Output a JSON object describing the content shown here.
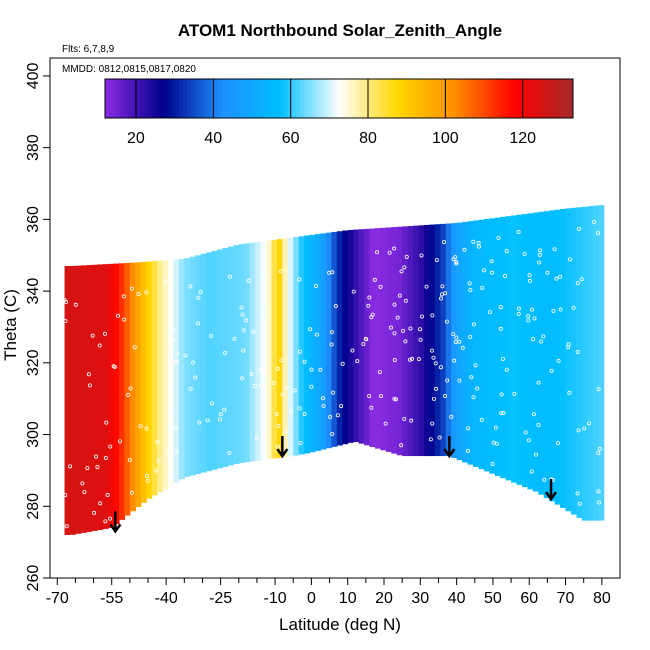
{
  "chart_data": {
    "type": "heatmap",
    "title": "ATOM1 Northbound Solar_Zenith_Angle",
    "subtitle_flights": "Flts: 6,7,8,9",
    "subtitle_dates": "MMDD: 0812,0815,0817,0820",
    "xlabel": "Latitude (deg N)",
    "ylabel": "Theta (C)",
    "xlim": [
      -72,
      85
    ],
    "ylim": [
      260,
      405
    ],
    "x_ticks": [
      -70,
      -55,
      -40,
      -25,
      -10,
      0,
      10,
      20,
      30,
      40,
      50,
      60,
      70,
      80
    ],
    "y_ticks": [
      260,
      280,
      300,
      320,
      340,
      360,
      380,
      400
    ],
    "colorbar": {
      "min": 12,
      "max": 133,
      "ticks": [
        20,
        40,
        60,
        80,
        100,
        120
      ],
      "stops": [
        "#8a2be2",
        "#00008b",
        "#1e90ff",
        "#00bfff",
        "#ffffff",
        "#ffd700",
        "#ff8c00",
        "#ff0000",
        "#a52a2a"
      ]
    },
    "field": {
      "lat_nodes": [
        -68,
        -60,
        -56,
        -52,
        -47,
        -42,
        -35,
        -28,
        -18,
        -12,
        -9,
        -7,
        -3,
        3,
        8,
        13,
        17,
        24,
        30,
        36,
        40,
        45,
        55,
        65,
        75,
        80
      ],
      "sza_nodes": [
        125,
        124,
        123,
        112,
        95,
        80,
        65,
        62,
        64,
        74,
        90,
        75,
        60,
        48,
        30,
        20,
        12,
        14,
        22,
        33,
        48,
        55,
        58,
        56,
        60,
        62
      ],
      "top_theta_nodes": [
        [
          -66,
          347
        ],
        [
          -48,
          348
        ],
        [
          -35,
          349
        ],
        [
          -20,
          353
        ],
        [
          -5,
          355
        ],
        [
          10,
          357
        ],
        [
          25,
          358
        ],
        [
          40,
          359
        ],
        [
          55,
          361
        ],
        [
          70,
          363
        ],
        [
          80,
          364
        ]
      ],
      "bottom_theta_nodes": [
        [
          -66,
          272
        ],
        [
          -55,
          274
        ],
        [
          -45,
          282
        ],
        [
          -35,
          288
        ],
        [
          -20,
          292
        ],
        [
          -5,
          294
        ],
        [
          0,
          295
        ],
        [
          12,
          298
        ],
        [
          25,
          294
        ],
        [
          38,
          294
        ],
        [
          50,
          289
        ],
        [
          62,
          284
        ],
        [
          75,
          276
        ],
        [
          80,
          276
        ]
      ]
    },
    "annotations": {
      "arrow_latitudes": [
        -54,
        -8,
        38,
        66
      ],
      "arrow_thetas": [
        276,
        297,
        297,
        285
      ]
    }
  }
}
